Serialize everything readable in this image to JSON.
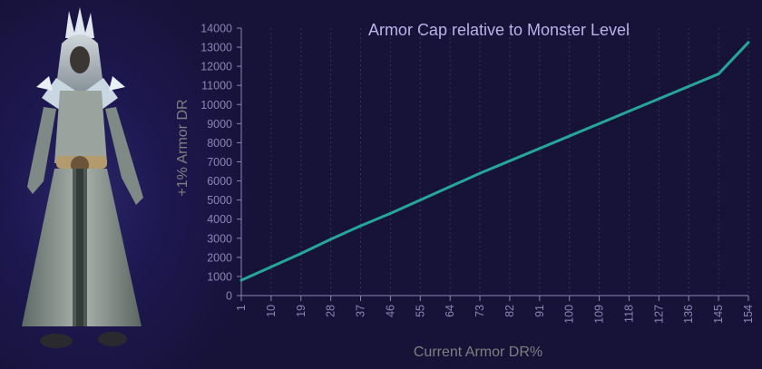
{
  "colors": {
    "background": "#171238",
    "line": "#26a69a",
    "axis": "#8a86b4",
    "title": "#b9b4ea",
    "axis_label": "#7f7f7f"
  },
  "hero_image": {
    "icon": "armored-character-figure"
  },
  "chart_data": {
    "type": "line",
    "title": "Armor Cap relative to Monster Level",
    "xlabel": "Current Armor DR%",
    "ylabel": "+1% Armor DR",
    "x_ticks": [
      "1",
      "10",
      "19",
      "28",
      "37",
      "46",
      "55",
      "64",
      "73",
      "82",
      "91",
      "100",
      "109",
      "118",
      "127",
      "136",
      "145",
      "154"
    ],
    "y_ticks": [
      "0",
      "1000",
      "2000",
      "3000",
      "4000",
      "5000",
      "6000",
      "7000",
      "8000",
      "9000",
      "10000",
      "11000",
      "12000",
      "13000",
      "14000"
    ],
    "xlim": [
      1,
      154
    ],
    "ylim": [
      0,
      14000
    ],
    "grid": "vertical dashed",
    "legend": "none",
    "series": [
      {
        "x": [
          1,
          10,
          19,
          28,
          37,
          46,
          55,
          64,
          73,
          82,
          91,
          100,
          109,
          118,
          127,
          136,
          145,
          154
        ],
        "values": [
          800,
          1500,
          2200,
          2950,
          3650,
          4300,
          5000,
          5700,
          6400,
          7050,
          7700,
          8350,
          9000,
          9650,
          10300,
          10950,
          11600,
          13250
        ]
      }
    ]
  }
}
